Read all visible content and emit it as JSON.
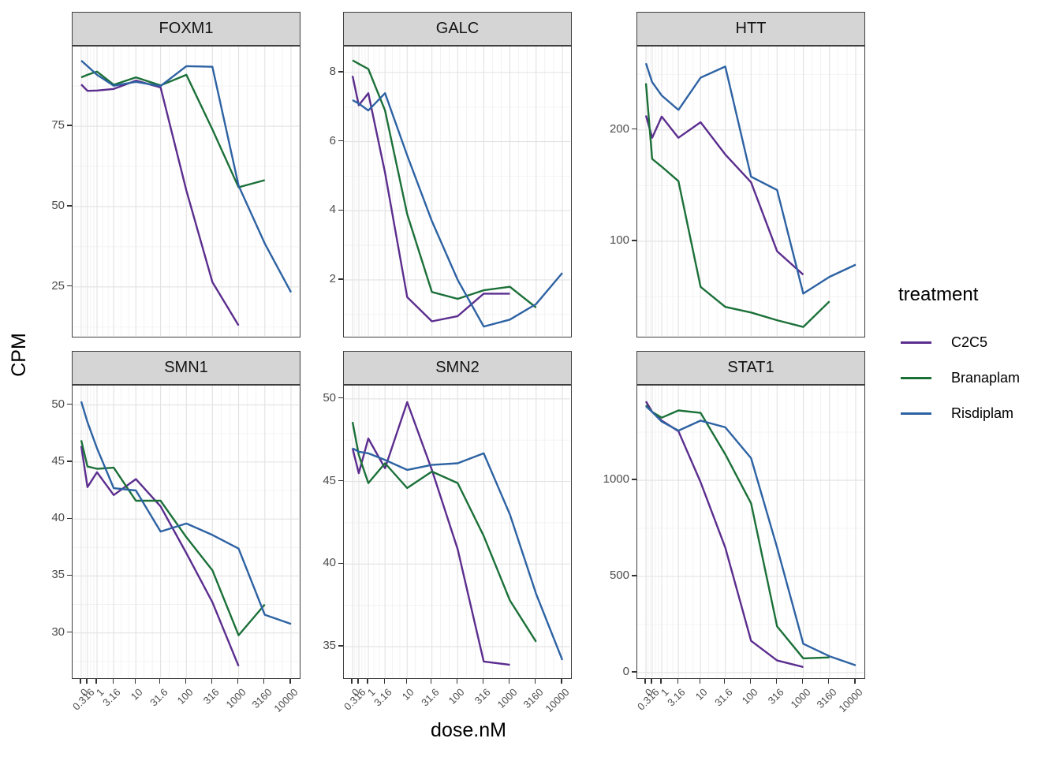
{
  "figure": {
    "y_axis_title": "CPM",
    "x_axis_title": "dose.nM",
    "legend": {
      "title": "treatment",
      "entries": [
        {
          "label": "C2C5",
          "color": "#5b2d8e"
        },
        {
          "label": "Branaplam",
          "color": "#1b7038"
        },
        {
          "label": "Risdiplam",
          "color": "#2d62a3"
        }
      ]
    }
  },
  "chart_data": {
    "type": "line",
    "title": "",
    "xlabel": "dose.nM",
    "ylabel": "CPM",
    "x_scale": "log10(dose+1)",
    "grid": true,
    "legend_position": "right",
    "x": [
      0,
      0.316,
      1,
      3.16,
      10,
      31.6,
      100,
      316,
      1000,
      3160,
      10000
    ],
    "x_tick_labels": [
      "0",
      "0.316",
      "1",
      "3.16",
      "10",
      "31.6",
      "100",
      "316",
      "1000",
      "3160",
      "10000"
    ],
    "facets": [
      {
        "title": "FOXM1",
        "ylim": [
          9,
          99.8
        ],
        "yticks": [
          25,
          50,
          75
        ],
        "series": [
          {
            "name": "C2C5",
            "values": [
              88,
              86,
              86.1,
              86.6,
              89.2,
              87.1,
              55,
              26.5,
              13
            ]
          },
          {
            "name": "Branaplam",
            "values": [
              90.2,
              91,
              92,
              87.9,
              90.2,
              87.7,
              91,
              74,
              56,
              58.2
            ]
          },
          {
            "name": "Risdiplam",
            "values": [
              95.4,
              93.7,
              91,
              87.6,
              88.8,
              87.5,
              93.7,
              93.5,
              56.5,
              38.5,
              23.3
            ]
          }
        ]
      },
      {
        "title": "GALC",
        "ylim": [
          0.31,
          8.75
        ],
        "yticks": [
          2,
          4,
          6,
          8
        ],
        "series": [
          {
            "name": "C2C5",
            "values": [
              7.9,
              7.05,
              7.4,
              5.1,
              1.5,
              0.8,
              0.95,
              1.6,
              1.6
            ]
          },
          {
            "name": "Branaplam",
            "values": [
              8.35,
              8.25,
              8.1,
              6.9,
              3.9,
              1.65,
              1.45,
              1.7,
              1.8,
              1.2
            ]
          },
          {
            "name": "Risdiplam",
            "values": [
              7.2,
              7.1,
              6.9,
              7.4,
              5.6,
              3.7,
              2.0,
              0.65,
              0.85,
              1.3,
              2.2
            ]
          }
        ]
      },
      {
        "title": "HTT",
        "ylim": [
          12.8,
          275
        ],
        "yticks": [
          100,
          200
        ],
        "series": [
          {
            "name": "C2C5",
            "values": [
              213,
              193,
              212,
              193,
              207,
              178,
              153,
              91,
              70
            ]
          },
          {
            "name": "Branaplam",
            "values": [
              242,
              174,
              167,
              154,
              59,
              41,
              36,
              29,
              23,
              46
            ]
          },
          {
            "name": "Risdiplam",
            "values": [
              260,
              243,
              231,
              218,
              247,
              257,
              158,
              146,
              53,
              68,
              79
            ]
          }
        ]
      },
      {
        "title": "SMN1",
        "ylim": [
          25.9,
          51.7
        ],
        "yticks": [
          30,
          35,
          40,
          45,
          50
        ],
        "series": [
          {
            "name": "C2C5",
            "values": [
              46.4,
              42.8,
              44.1,
              42.1,
              43.5,
              41.1,
              37.0,
              32.7,
              27.1
            ]
          },
          {
            "name": "Branaplam",
            "values": [
              46.9,
              44.6,
              44.4,
              44.5,
              41.6,
              41.6,
              38.4,
              35.5,
              29.8,
              32.5
            ]
          },
          {
            "name": "Risdiplam",
            "values": [
              50.3,
              48.5,
              46.2,
              42.7,
              42.5,
              38.9,
              39.6,
              38.6,
              37.4,
              31.6,
              30.8
            ]
          }
        ]
      },
      {
        "title": "SMN2",
        "ylim": [
          33.0,
          50.8
        ],
        "yticks": [
          35,
          40,
          45,
          50
        ],
        "series": [
          {
            "name": "C2C5",
            "values": [
              47.0,
              45.5,
              47.6,
              45.8,
              49.8,
              45.7,
              40.9,
              34.1,
              33.9
            ]
          },
          {
            "name": "Branaplam",
            "values": [
              48.6,
              46.6,
              44.9,
              46.1,
              44.6,
              45.6,
              44.9,
              41.7,
              37.8,
              35.3
            ]
          },
          {
            "name": "Risdiplam",
            "values": [
              47.0,
              46.8,
              46.7,
              46.3,
              45.7,
              46.0,
              46.1,
              46.7,
              43.0,
              38.2,
              34.2
            ]
          }
        ]
      },
      {
        "title": "STAT1",
        "ylim": [
          -37,
          1492
        ],
        "yticks": [
          0,
          500,
          1000
        ],
        "series": [
          {
            "name": "C2C5",
            "values": [
              1410,
              1355,
              1310,
              1255,
              990,
              650,
              165,
              63,
              29
            ]
          },
          {
            "name": "Branaplam",
            "values": [
              1390,
              1355,
              1325,
              1363,
              1350,
              1135,
              880,
              240,
              74,
              79
            ]
          },
          {
            "name": "Risdiplam",
            "values": [
              1385,
              1355,
              1305,
              1258,
              1310,
              1275,
              1115,
              650,
              150,
              85,
              38
            ]
          }
        ]
      }
    ]
  }
}
